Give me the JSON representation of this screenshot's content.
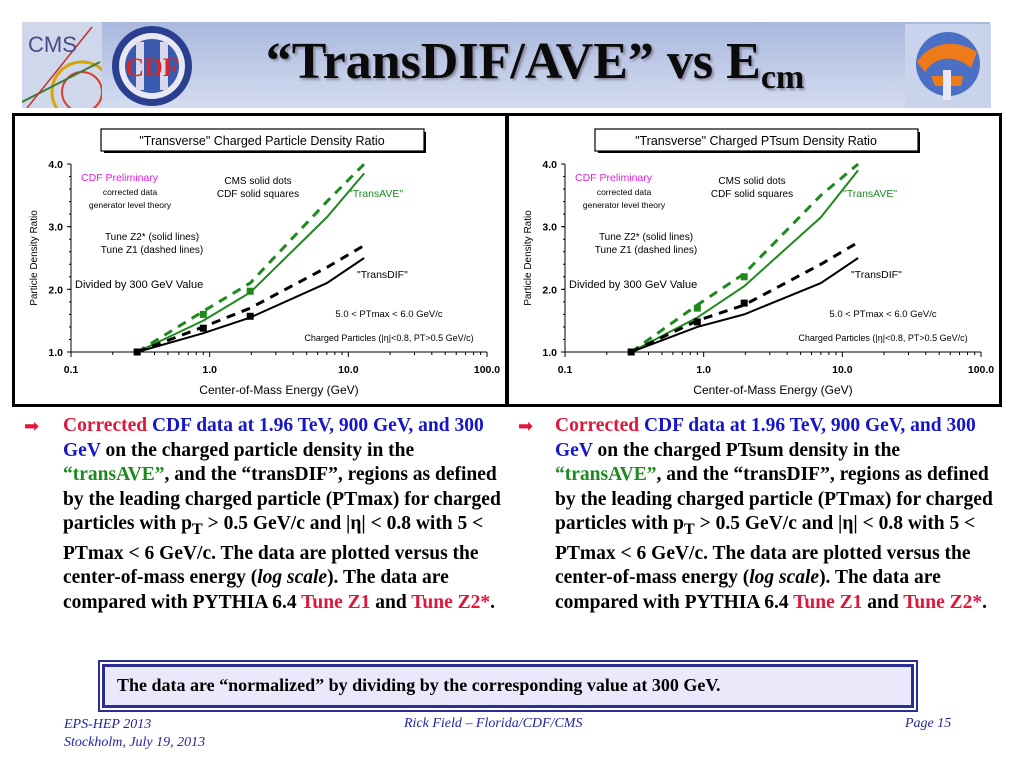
{
  "slide": {
    "title_main": "“TransDIF/AVE” vs E",
    "title_sub": "cm",
    "logos": {
      "cms": "CMS",
      "cdf": "CDF"
    },
    "note": "The data are “normalized” by dividing by the corresponding value at 300 GeV.",
    "footer": {
      "left_line1": "EPS-HEP 2013",
      "left_line2": "Stockholm, July 19, 2013",
      "center": "Rick Field – Florida/CDF/CMS",
      "right": "Page 15"
    }
  },
  "left_text": {
    "w1": "Corrected",
    "w2": "CDF data at 1.96 TeV, 900 GeV, and 300 GeV",
    "w3": " on the charged particle density in the ",
    "w4": "“transAVE”",
    "w5": ", and the “transDIF”, regions as defined by the leading charged particle (PTmax) for charged particles with p",
    "w6": "T",
    "w7": " > 0.5 GeV/c and |η| < 0.8 with 5 < PTmax < 6 GeV/c. The data are plotted versus the center-of-mass energy (",
    "w8": "log scale",
    "w9": "). The data are compared with PYTHIA 6.4 ",
    "w10": "Tune Z1",
    "w11": " and ",
    "w12": "Tune Z2*",
    "w13": "."
  },
  "right_text": {
    "w1": "Corrected",
    "w2": "CDF data at 1.96 TeV, 900 GeV, and 300 GeV",
    "w3": " on the charged PTsum density in the ",
    "w4": "“transAVE”",
    "w5": ", and the “transDIF”, regions as defined by the leading charged particle (PTmax) for charged particles with p",
    "w6": "T",
    "w7": " > 0.5 GeV/c and |η| < 0.8 with 5 < PTmax < 6 GeV/c. The data are plotted versus the center-of-mass energy (",
    "w8": "log scale",
    "w9": "). The data are compared with PYTHIA 6.4 ",
    "w10": "Tune Z1",
    "w11": " and ",
    "w12": "Tune Z2*",
    "w13": "."
  },
  "chart_data": [
    {
      "type": "scatter",
      "title": "\"Transverse\" Charged Particle Density Ratio",
      "xlabel": "Center-of-Mass Energy  (GeV)",
      "ylabel": "Particle Density Ratio",
      "xscale": "log",
      "xlim": [
        0.1,
        100.0
      ],
      "ylim": [
        1.0,
        4.0
      ],
      "xticks": [
        "0.1",
        "1.0",
        "10.0",
        "100.0"
      ],
      "yticks": [
        "1.0",
        "2.0",
        "3.0",
        "4.0"
      ],
      "grid": false,
      "annotations": {
        "prelim": "CDF Preliminary",
        "corrected": "corrected data",
        "generator": "generator level theory",
        "cms_dots": "CMS solid dots",
        "cdf_squares": "CDF solid squares",
        "tune_z2": "Tune Z2* (solid lines)",
        "tune_z1": "Tune Z1 (dashed lines)",
        "divided": "Divided by 300 GeV Value",
        "transave": "\"TransAVE\"",
        "transdif": "\"TransDIF\"",
        "ptmax": "5.0 < PTmax < 6.0 GeV/c",
        "charged": "Charged Particles (|η|<0.8, PT>0.5 GeV/c)"
      },
      "series": [
        {
          "role": "transAVE Z2* solid",
          "color": "#1e8a1e",
          "dash": false,
          "x": [
            0.3,
            0.9,
            1.96,
            7,
            13
          ],
          "y": [
            1.0,
            1.5,
            1.95,
            3.15,
            3.85
          ]
        },
        {
          "role": "transAVE Z1 dashed",
          "color": "#1e8a1e",
          "dash": true,
          "x": [
            0.3,
            0.9,
            1.96,
            7,
            13
          ],
          "y": [
            1.0,
            1.65,
            2.1,
            3.4,
            4.0
          ]
        },
        {
          "role": "transDIF Z2* solid",
          "color": "#000000",
          "dash": false,
          "x": [
            0.3,
            0.9,
            1.96,
            7,
            13
          ],
          "y": [
            1.0,
            1.3,
            1.55,
            2.1,
            2.5
          ]
        },
        {
          "role": "transDIF Z1 dashed",
          "color": "#000000",
          "dash": true,
          "x": [
            0.3,
            0.9,
            1.96,
            7,
            13
          ],
          "y": [
            1.0,
            1.4,
            1.7,
            2.35,
            2.7
          ]
        },
        {
          "role": "CDF transAVE",
          "color": "#1e8a1e",
          "marker": "square",
          "x": [
            0.3,
            0.9,
            1.96
          ],
          "y": [
            1.0,
            1.6,
            1.97
          ]
        },
        {
          "role": "CDF transDIF",
          "color": "#000000",
          "marker": "square",
          "x": [
            0.3,
            0.9,
            1.96
          ],
          "y": [
            1.0,
            1.38,
            1.57
          ]
        }
      ]
    },
    {
      "type": "scatter",
      "title": "\"Transverse\" Charged PTsum Density Ratio",
      "xlabel": "Center-of-Mass Energy  (GeV)",
      "ylabel": "Particle Density Ratio",
      "xscale": "log",
      "xlim": [
        0.1,
        100.0
      ],
      "ylim": [
        1.0,
        4.0
      ],
      "xticks": [
        "0.1",
        "1.0",
        "10.0",
        "100.0"
      ],
      "yticks": [
        "1.0",
        "2.0",
        "3.0",
        "4.0"
      ],
      "grid": false,
      "annotations": {
        "prelim": "CDF Preliminary",
        "corrected": "corrected data",
        "generator": "generator level theory",
        "cms_dots": "CMS solid dots",
        "cdf_squares": "CDF solid squares",
        "tune_z2": "Tune Z2* (solid lines)",
        "tune_z1": "Tune Z1 (dashed lines)",
        "divided": "Divided by 300 GeV Value",
        "transave": "\"TransAVE\"",
        "transdif": "\"TransDIF\"",
        "ptmax": "5.0 < PTmax < 6.0 GeV/c",
        "charged": "Charged Particles (|η|<0.8, PT>0.5 GeV/c)"
      },
      "series": [
        {
          "role": "transAVE Z2* solid",
          "color": "#1e8a1e",
          "dash": false,
          "x": [
            0.3,
            0.9,
            1.96,
            7,
            13
          ],
          "y": [
            1.0,
            1.55,
            2.05,
            3.15,
            3.9
          ]
        },
        {
          "role": "transAVE Z1 dashed",
          "color": "#1e8a1e",
          "dash": true,
          "x": [
            0.3,
            0.9,
            1.96,
            7,
            13
          ],
          "y": [
            1.0,
            1.75,
            2.25,
            3.5,
            4.0
          ]
        },
        {
          "role": "transDIF Z2* solid",
          "color": "#000000",
          "dash": false,
          "x": [
            0.3,
            0.9,
            1.96,
            7,
            13
          ],
          "y": [
            1.0,
            1.4,
            1.6,
            2.1,
            2.5
          ]
        },
        {
          "role": "transDIF Z1 dashed",
          "color": "#000000",
          "dash": true,
          "x": [
            0.3,
            0.9,
            1.96,
            7,
            13
          ],
          "y": [
            1.0,
            1.5,
            1.75,
            2.4,
            2.75
          ]
        },
        {
          "role": "CDF transAVE",
          "color": "#1e8a1e",
          "marker": "square",
          "x": [
            0.3,
            0.9,
            1.96
          ],
          "y": [
            1.0,
            1.7,
            2.2
          ]
        },
        {
          "role": "CDF transDIF",
          "color": "#000000",
          "marker": "square",
          "x": [
            0.3,
            0.9,
            1.96
          ],
          "y": [
            1.0,
            1.48,
            1.78
          ]
        }
      ]
    }
  ]
}
